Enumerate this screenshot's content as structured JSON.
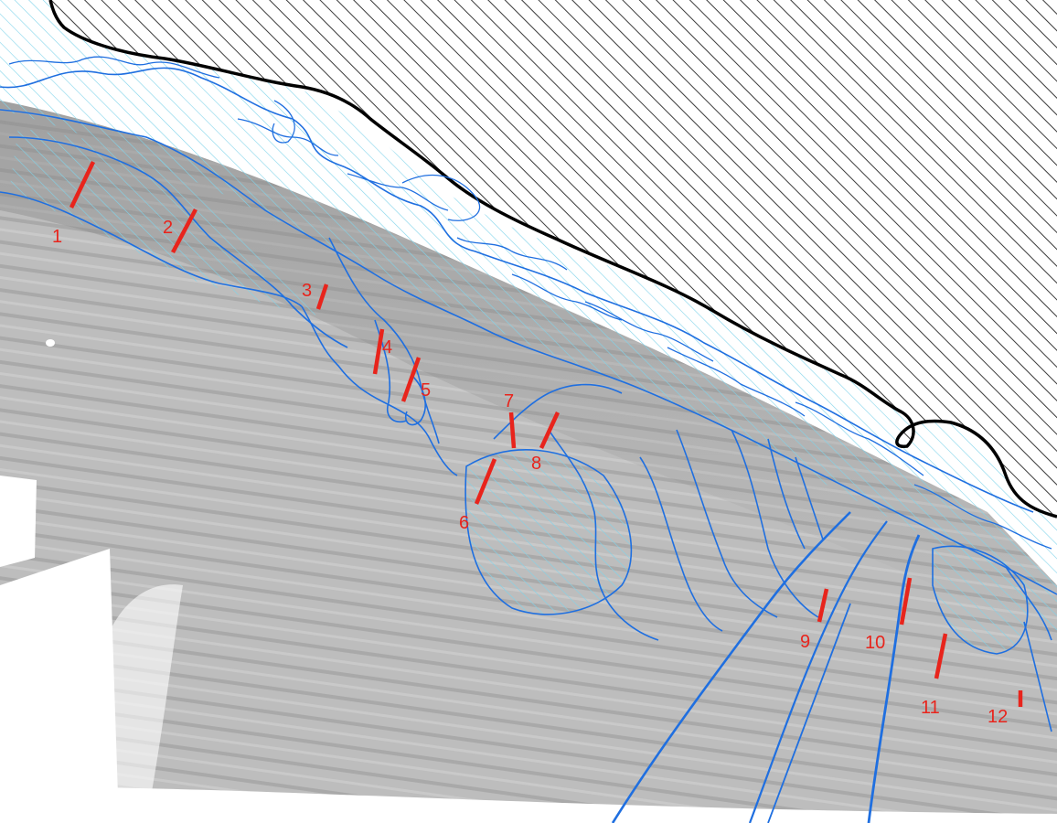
{
  "map": {
    "colors": {
      "land_hatch": "#333333",
      "coastline": "#000000",
      "shallow_hatch": "#7fd3ea",
      "contour": "#1f6fe0",
      "bathymetry": "#b9b9b9",
      "transect": "#e8241c"
    },
    "transects": [
      {
        "id": "transect-1",
        "label": "1"
      },
      {
        "id": "transect-2",
        "label": "2"
      },
      {
        "id": "transect-3",
        "label": "3"
      },
      {
        "id": "transect-4",
        "label": "4"
      },
      {
        "id": "transect-5",
        "label": "5"
      },
      {
        "id": "transect-6",
        "label": "6"
      },
      {
        "id": "transect-7",
        "label": "7"
      },
      {
        "id": "transect-8",
        "label": "8"
      },
      {
        "id": "transect-9",
        "label": "9"
      },
      {
        "id": "transect-10",
        "label": "10"
      },
      {
        "id": "transect-11",
        "label": "11"
      },
      {
        "id": "transect-12",
        "label": "12"
      }
    ]
  }
}
